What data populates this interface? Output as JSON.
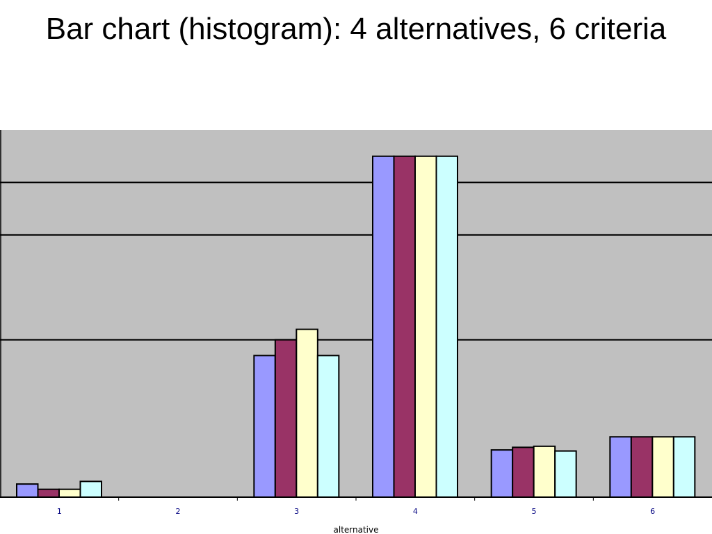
{
  "slide": {
    "title": "Bar chart (histogram): 4 alternatives, 6 criteria"
  },
  "chart_data": {
    "type": "bar",
    "title": "",
    "xlabel": "alternative",
    "ylabel": "",
    "categories": [
      "1",
      "2",
      "3",
      "4",
      "5",
      "6"
    ],
    "series": [
      {
        "color": "#9999ff",
        "values": [
          0.25,
          0,
          2.7,
          6.5,
          0.9,
          1.15
        ]
      },
      {
        "color": "#993366",
        "values": [
          0.15,
          0,
          3.0,
          6.5,
          0.95,
          1.15
        ]
      },
      {
        "color": "#ffffcc",
        "values": [
          0.15,
          0,
          3.2,
          6.5,
          0.97,
          1.15
        ]
      },
      {
        "color": "#ccffff",
        "values": [
          0.3,
          0,
          2.7,
          6.5,
          0.88,
          1.15
        ]
      }
    ],
    "ylim": [
      0,
      7
    ],
    "gridlines": [
      3,
      5,
      6
    ],
    "grid": true,
    "legend": "none",
    "plot_background": "#c0c0c0",
    "tick_label_color": "#000080"
  }
}
